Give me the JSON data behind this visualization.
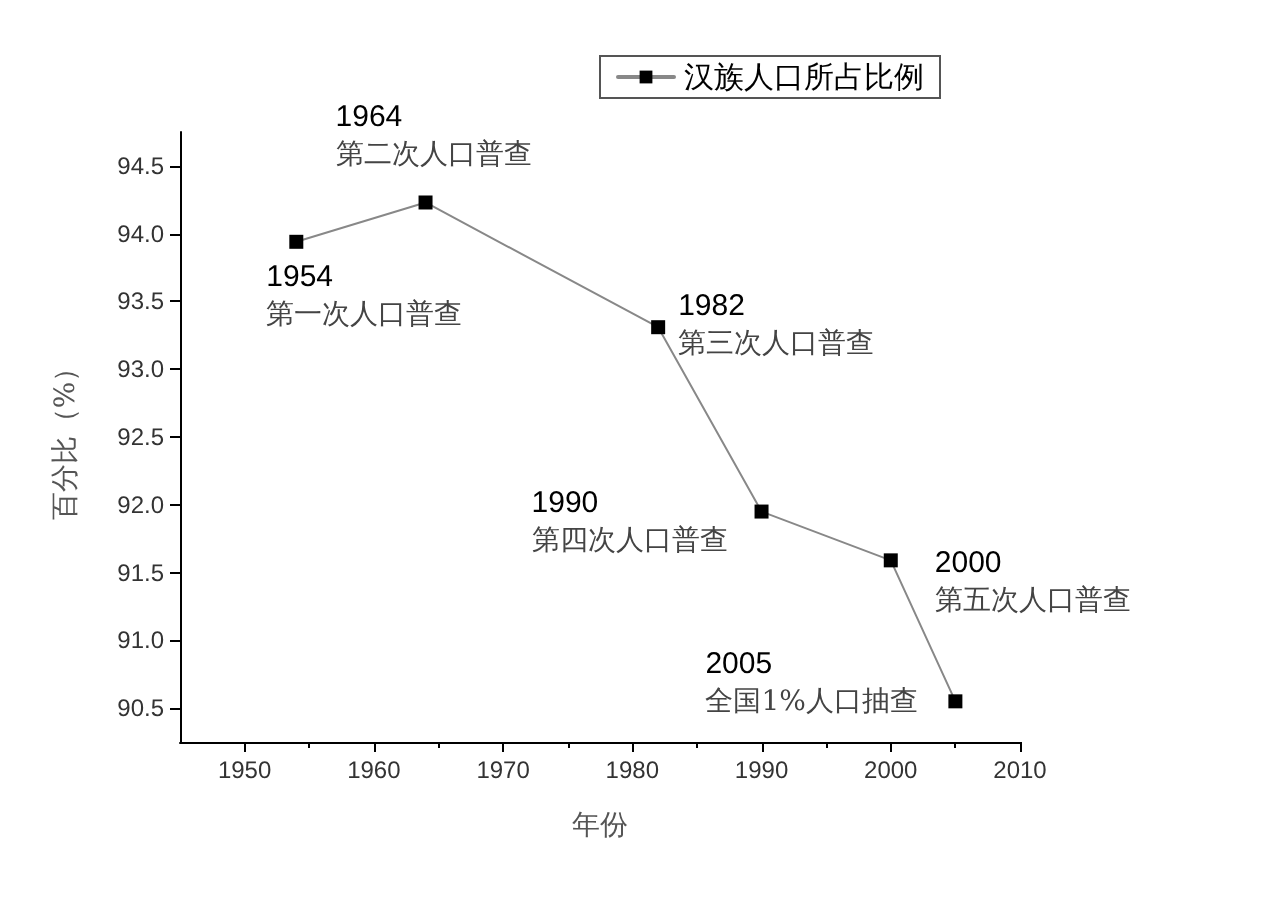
{
  "chart_data": {
    "type": "line",
    "xlabel": "年份",
    "ylabel": "百分比（%）",
    "x": [
      1954,
      1964,
      1982,
      1990,
      2000,
      2005
    ],
    "series": [
      {
        "name": "汉族人口所占比例",
        "color": "#000000",
        "values": [
          93.94,
          94.23,
          93.31,
          91.95,
          91.59,
          90.55
        ]
      }
    ],
    "xlim": [
      1945,
      2010
    ],
    "xticks": [
      1950,
      1960,
      1970,
      1980,
      1990,
      2000,
      2010
    ],
    "ylim": [
      90.25,
      94.75
    ],
    "yticks": [
      {
        "value": 90.5,
        "label": "90.5"
      },
      {
        "value": 91,
        "label": "91.0"
      },
      {
        "value": 91.5,
        "label": "91.5"
      },
      {
        "value": 92,
        "label": "92.0"
      },
      {
        "value": 92.5,
        "label": "92.5"
      },
      {
        "value": 93,
        "label": "93.0"
      },
      {
        "value": 93.5,
        "label": "93.5"
      },
      {
        "value": 94,
        "label": "94.0"
      },
      {
        "value": 94.5,
        "label": "94.5"
      }
    ],
    "annotations": [
      {
        "text": "1954\n第一次人口普查",
        "x": 1954,
        "y": 93.94
      },
      {
        "text": "1964\n第二次人口普查",
        "x": 1964,
        "y": 94.23
      },
      {
        "text": "1982\n第三次人口普查",
        "x": 1982,
        "y": 93.31
      },
      {
        "text": "1990\n第四次人口普查",
        "x": 1990,
        "y": 91.95
      },
      {
        "text": "2000\n第五次人口普查",
        "x": 2000,
        "y": 91.59
      },
      {
        "text": "2005\n全国1%人口抽查",
        "x": 2005,
        "y": 90.55
      }
    ],
    "grid": false,
    "legend": "top right",
    "marker": "square",
    "line_style": "solid"
  }
}
